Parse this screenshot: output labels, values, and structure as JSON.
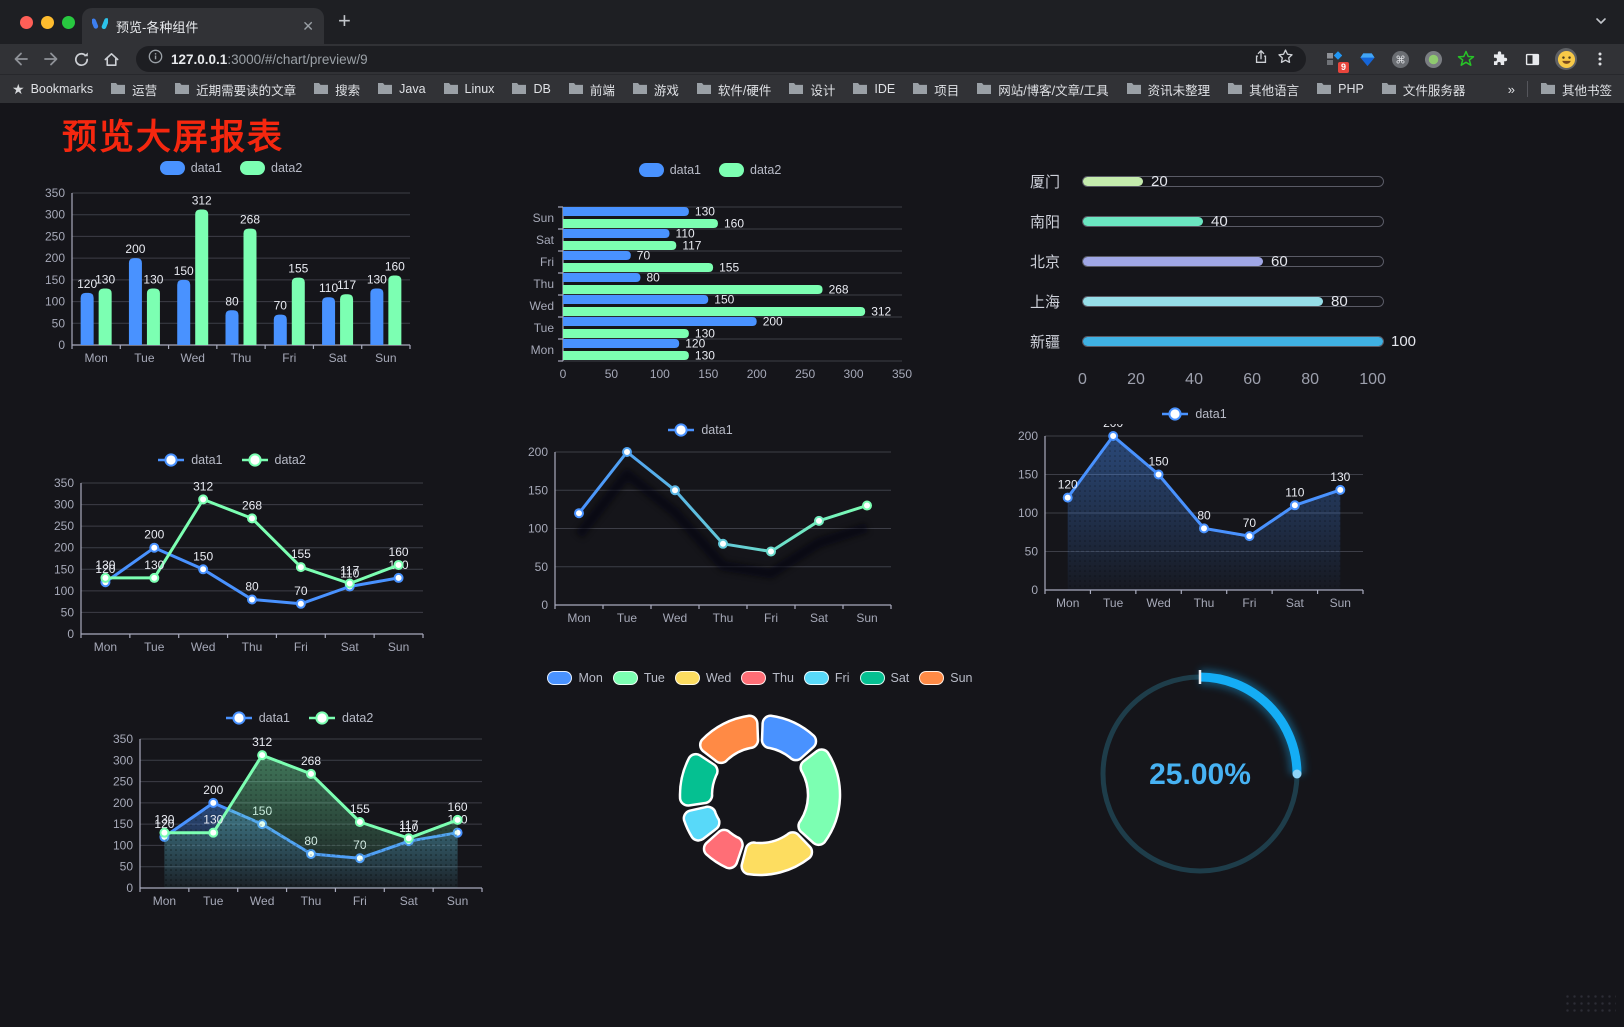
{
  "browser": {
    "traffic_lights": [
      "#ff5f57",
      "#febc2e",
      "#28c840"
    ],
    "tab": {
      "title": "预览-各种组件",
      "close_label": "✕",
      "new_tab_label": "+"
    },
    "toolbar": {
      "url_host": "127.0.0.1",
      "url_rest": ":3000/#/chart/preview/9",
      "extension_badge": "9"
    },
    "bookmarks": {
      "label": "Bookmarks",
      "items": [
        "运营",
        "近期需要读的文章",
        "搜索",
        "Java",
        "Linux",
        "DB",
        "前端",
        "游戏",
        "软件/硬件",
        "设计",
        "IDE",
        "项目",
        "网站/博客/文章/工具",
        "资讯未整理",
        "其他语言",
        "PHP",
        "文件服务器"
      ],
      "overflow": "»",
      "other": "其他书签"
    }
  },
  "page": {
    "title": "预览大屏报表",
    "title_color": "#f5270f",
    "bg": "#15151a"
  },
  "chart_data": [
    {
      "id": "c1",
      "type": "bar",
      "legend_pos": "top",
      "categories": [
        "Mon",
        "Tue",
        "Wed",
        "Thu",
        "Fri",
        "Sat",
        "Sun"
      ],
      "series": [
        {
          "name": "data1",
          "color": "#4992ff",
          "values": [
            120,
            200,
            150,
            80,
            70,
            110,
            130
          ]
        },
        {
          "name": "data2",
          "color": "#7cffb2",
          "values": [
            130,
            130,
            312,
            268,
            155,
            117,
            160
          ]
        }
      ],
      "ylim": [
        0,
        350
      ],
      "ystep": 50,
      "grid": true,
      "value_labels": true
    },
    {
      "id": "c2",
      "type": "bar-horizontal",
      "legend_pos": "top",
      "categories_top_to_bottom": [
        "Sun",
        "Sat",
        "Fri",
        "Thu",
        "Wed",
        "Tue",
        "Mon"
      ],
      "series": [
        {
          "name": "data1",
          "color": "#4992ff",
          "values": [
            130,
            110,
            70,
            80,
            150,
            200,
            120
          ]
        },
        {
          "name": "data2",
          "color": "#7cffb2",
          "values": [
            160,
            117,
            155,
            268,
            312,
            130,
            130
          ]
        }
      ],
      "xlim": [
        0,
        350
      ],
      "xstep": 50,
      "value_labels": true
    },
    {
      "id": "c3",
      "type": "progress-bars",
      "bars": [
        {
          "label": "厦门",
          "value": 20,
          "color": "#c4ebad"
        },
        {
          "label": "南阳",
          "value": 40,
          "color": "#6be6c1"
        },
        {
          "label": "北京",
          "value": 60,
          "color": "#a0a7e6"
        },
        {
          "label": "上海",
          "value": 80,
          "color": "#96dee8"
        },
        {
          "label": "新疆",
          "value": 100,
          "color": "#3fb1e3"
        }
      ],
      "xlim": [
        0,
        100
      ],
      "xticks": [
        0,
        20,
        40,
        60,
        80,
        100
      ]
    },
    {
      "id": "c4",
      "type": "line",
      "legend_pos": "top",
      "categories": [
        "Mon",
        "Tue",
        "Wed",
        "Thu",
        "Fri",
        "Sat",
        "Sun"
      ],
      "series": [
        {
          "name": "data1",
          "color": "#4992ff",
          "values": [
            120,
            200,
            150,
            80,
            70,
            110,
            130
          ],
          "labels": true
        },
        {
          "name": "data2",
          "color": "#7cffb2",
          "values": [
            130,
            130,
            312,
            268,
            155,
            117,
            160
          ],
          "labels": true
        }
      ],
      "ylim": [
        0,
        350
      ],
      "ystep": 50,
      "grid": true
    },
    {
      "id": "c5",
      "type": "line",
      "legend_pos": "top",
      "categories": [
        "Mon",
        "Tue",
        "Wed",
        "Thu",
        "Fri",
        "Sat",
        "Sun"
      ],
      "series": [
        {
          "name": "data1",
          "color": "#4992ff",
          "line_gradient": [
            "#4992ff",
            "#7cffb2"
          ],
          "shadow": true,
          "values": [
            120,
            200,
            150,
            80,
            70,
            110,
            130
          ],
          "labels": false
        }
      ],
      "ylim": [
        0,
        200
      ],
      "ystep": 50,
      "grid": true
    },
    {
      "id": "c6",
      "type": "area",
      "legend_pos": "top",
      "categories": [
        "Mon",
        "Tue",
        "Wed",
        "Thu",
        "Fri",
        "Sat",
        "Sun"
      ],
      "series": [
        {
          "name": "data1",
          "color": "#4992ff",
          "values": [
            120,
            200,
            150,
            80,
            70,
            110,
            130
          ],
          "labels": true,
          "area": true
        }
      ],
      "ylim": [
        0,
        200
      ],
      "ystep": 50,
      "grid": true
    },
    {
      "id": "c7",
      "type": "area",
      "legend_pos": "top",
      "categories": [
        "Mon",
        "Tue",
        "Wed",
        "Thu",
        "Fri",
        "Sat",
        "Sun"
      ],
      "series": [
        {
          "name": "data1",
          "color": "#4992ff",
          "values": [
            120,
            200,
            150,
            80,
            70,
            110,
            130
          ],
          "labels": true,
          "area": true
        },
        {
          "name": "data2",
          "color": "#7cffb2",
          "values": [
            130,
            130,
            312,
            268,
            155,
            117,
            160
          ],
          "labels": true,
          "area": true
        }
      ],
      "ylim": [
        0,
        350
      ],
      "ystep": 50,
      "grid": true
    },
    {
      "id": "c8",
      "type": "pie",
      "legend_pos": "top",
      "slices": [
        {
          "label": "Mon",
          "value": 120,
          "color": "#4992ff"
        },
        {
          "label": "Tue",
          "value": 200,
          "color": "#7cffb2"
        },
        {
          "label": "Wed",
          "value": 150,
          "color": "#fddd60"
        },
        {
          "label": "Thu",
          "value": 80,
          "color": "#ff6e76"
        },
        {
          "label": "Fri",
          "value": 70,
          "color": "#58d9f9"
        },
        {
          "label": "Sat",
          "value": 110,
          "color": "#05c091"
        },
        {
          "label": "Sun",
          "value": 130,
          "color": "#ff8a45"
        }
      ],
      "donut": true
    },
    {
      "id": "c9",
      "type": "gauge",
      "value": 25,
      "label": "25.00%",
      "arc_color": "#14adf5",
      "track_color": "#1e3d4a",
      "text_color": "#47b2f3"
    }
  ]
}
